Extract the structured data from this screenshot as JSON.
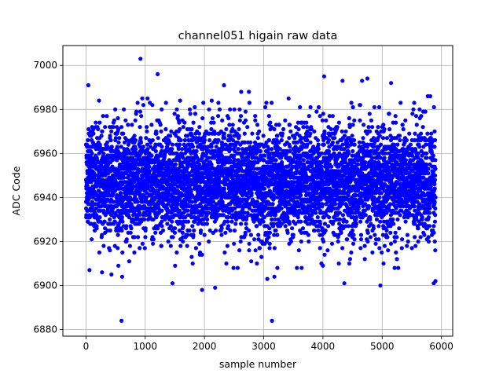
{
  "chart_data": {
    "type": "scatter",
    "title": "channel051 higain raw data",
    "xlabel": "sample number",
    "ylabel": "ADC Code",
    "xlim": [
      -390,
      6190
    ],
    "ylim": [
      6877,
      7009
    ],
    "xticks": [
      0,
      1000,
      2000,
      3000,
      4000,
      5000,
      6000
    ],
    "yticks": [
      6880,
      6900,
      6920,
      6940,
      6960,
      6980,
      7000
    ],
    "grid": true,
    "marker_color": "#0000ff",
    "series": [
      {
        "sample_count": 5900,
        "points": [
          [
            920,
            7003
          ],
          [
            40,
            6991
          ],
          [
            1210,
            6996
          ],
          [
            4020,
            6995
          ],
          [
            4750,
            6994
          ],
          [
            4660,
            6993
          ],
          [
            4330,
            6993
          ],
          [
            5150,
            6992
          ],
          [
            2330,
            6991
          ],
          [
            2620,
            6988
          ],
          [
            2750,
            6988
          ],
          [
            3420,
            6985
          ],
          [
            950,
            6985
          ],
          [
            1040,
            6985
          ],
          [
            220,
            6984
          ],
          [
            5540,
            6983
          ],
          [
            4480,
            6983
          ],
          [
            1350,
            6983
          ],
          [
            3790,
            6981
          ],
          [
            4950,
            6981
          ],
          [
            5770,
            6986
          ],
          [
            5810,
            6986
          ],
          [
            610,
            6904
          ],
          [
            730,
            6911
          ],
          [
            1460,
            6901
          ],
          [
            1960,
            6898
          ],
          [
            2180,
            6899
          ],
          [
            2490,
            6908
          ],
          [
            2560,
            6908
          ],
          [
            3060,
            6903
          ],
          [
            3180,
            6904
          ],
          [
            3230,
            6908
          ],
          [
            3560,
            6908
          ],
          [
            3640,
            6908
          ],
          [
            4000,
            6909
          ],
          [
            4360,
            6901
          ],
          [
            4970,
            6900
          ],
          [
            5210,
            6908
          ],
          [
            5870,
            6901
          ],
          [
            5900,
            6902
          ],
          [
            600,
            6884
          ],
          [
            3140,
            6884
          ],
          [
            60,
            6907
          ],
          [
            270,
            6906
          ],
          [
            430,
            6905
          ]
        ],
        "note_not_used": ""
      }
    ]
  }
}
